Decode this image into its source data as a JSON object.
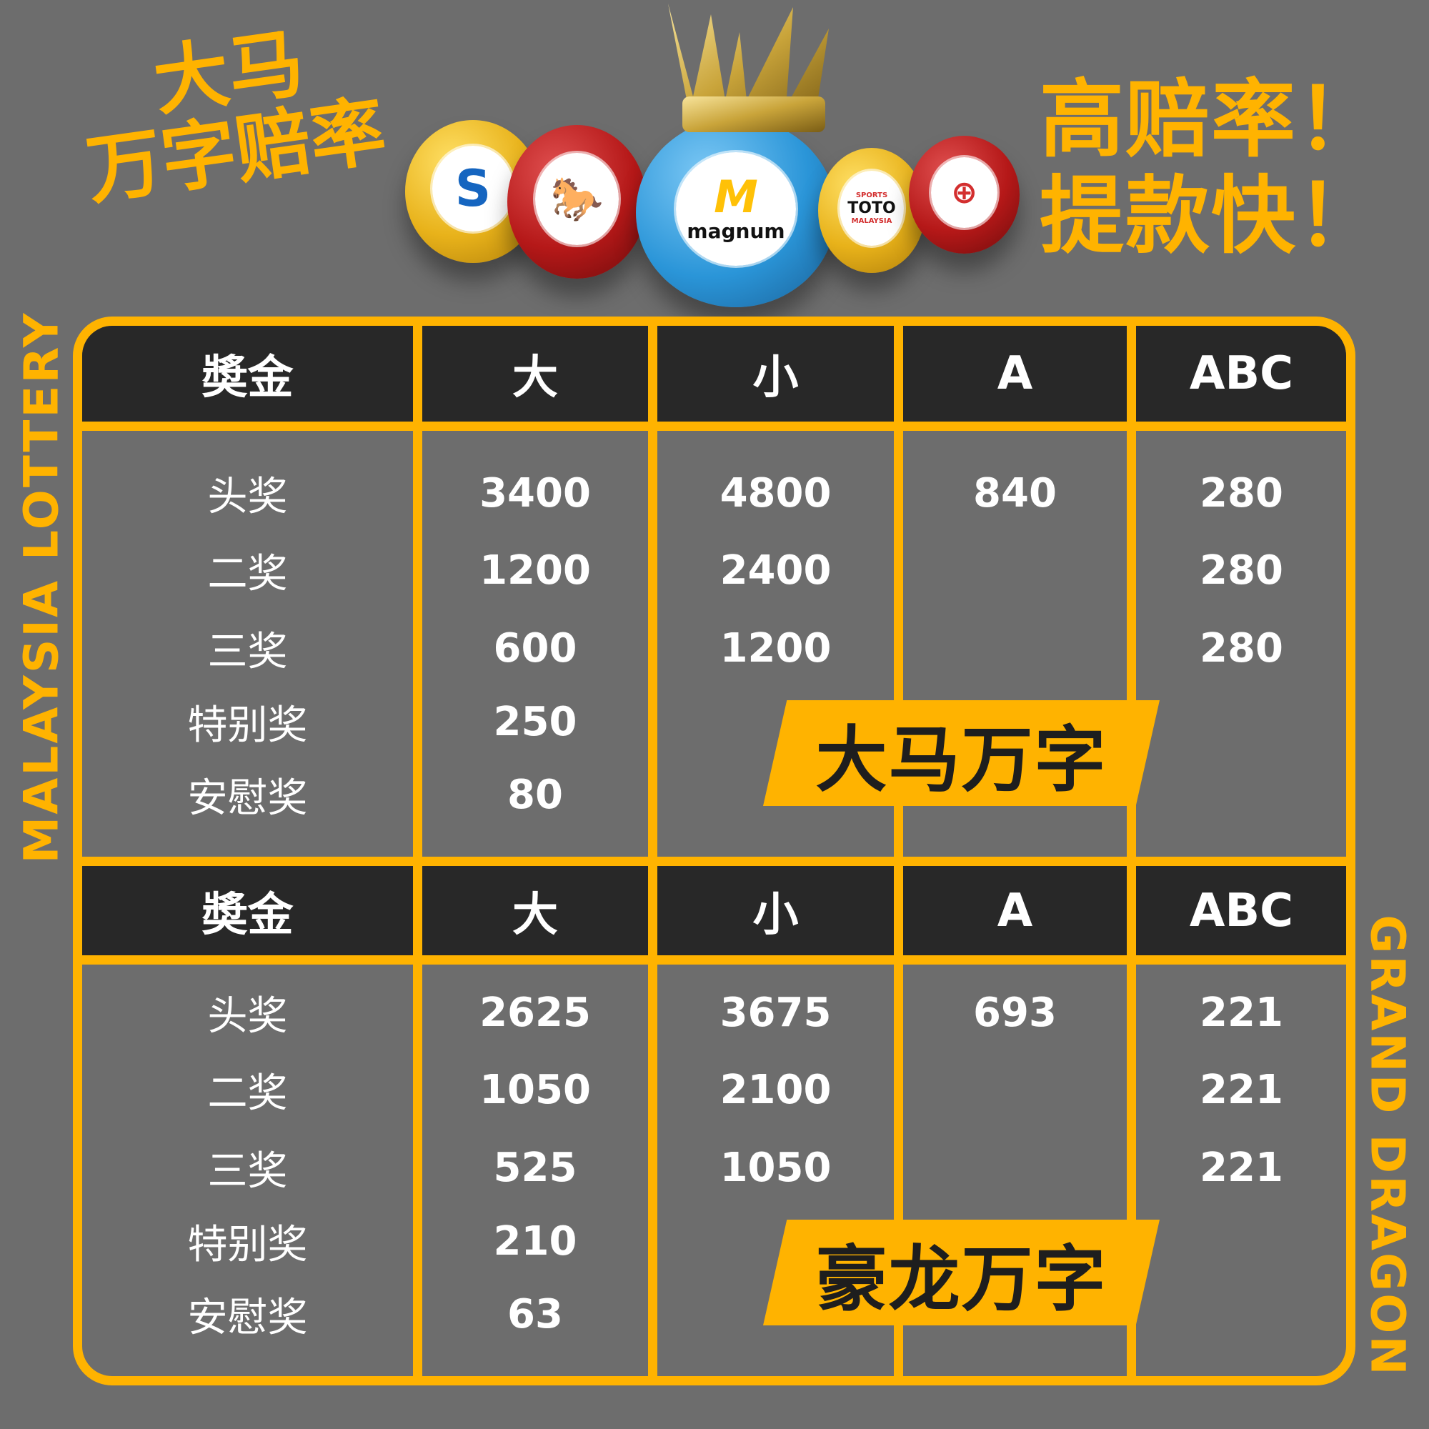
{
  "headline_left": {
    "line1": "大马",
    "line2": "万字赔率"
  },
  "headline_right": {
    "line1": "高赔率！",
    "line2": "提款快！"
  },
  "side_left": "MALAYSIA LOTTERY",
  "side_right": "GRAND DRAGON",
  "logos": {
    "magnum": "magnum",
    "toto_top": "SPORTS",
    "toto": "TOTO",
    "toto_bottom": "MALAYSIA",
    "damacai": "S"
  },
  "colors": {
    "accent": "#ffb300",
    "background": "#6d6d6d",
    "header": "#282828"
  },
  "columns": [
    "奬金",
    "大",
    "小",
    "A",
    "ABC"
  ],
  "tables": [
    {
      "banner": "大马万字",
      "rows": [
        {
          "label": "头奖",
          "big": "3400",
          "small": "4800",
          "a": "840",
          "abc": "280"
        },
        {
          "label": "二奖",
          "big": "1200",
          "small": "2400",
          "a": "",
          "abc": "280"
        },
        {
          "label": "三奖",
          "big": "600",
          "small": "1200",
          "a": "",
          "abc": "280"
        },
        {
          "label": "特别奖",
          "big": "250",
          "small": "",
          "a": "",
          "abc": ""
        },
        {
          "label": "安慰奖",
          "big": "80",
          "small": "",
          "a": "",
          "abc": ""
        }
      ]
    },
    {
      "banner": "豪龙万字",
      "rows": [
        {
          "label": "头奖",
          "big": "2625",
          "small": "3675",
          "a": "693",
          "abc": "221"
        },
        {
          "label": "二奖",
          "big": "1050",
          "small": "2100",
          "a": "",
          "abc": "221"
        },
        {
          "label": "三奖",
          "big": "525",
          "small": "1050",
          "a": "",
          "abc": "221"
        },
        {
          "label": "特别奖",
          "big": "210",
          "small": "",
          "a": "",
          "abc": ""
        },
        {
          "label": "安慰奖",
          "big": "63",
          "small": "",
          "a": "",
          "abc": ""
        }
      ]
    }
  ]
}
